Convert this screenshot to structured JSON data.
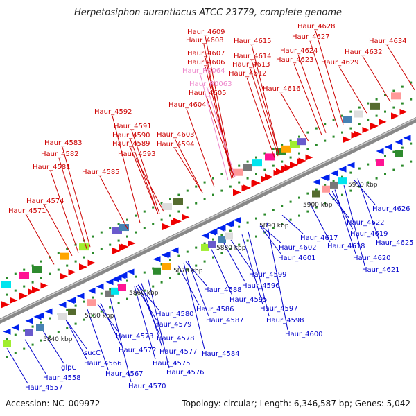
{
  "title": "Herpetosiphon aurantiacus ATCC 23779, complete genome",
  "accession": "Accession: NC_009972",
  "topology": "Topology: circular; Length: 6,346,587 bp; Genes: 5,042",
  "colors": {
    "top_label": "#cc0000",
    "rna_label": "#ee88cc",
    "bottom_label": "#0000cc",
    "forward_arrow": "#ee0000",
    "reverse_arrow": "#0022ee",
    "backbone": "#888888",
    "tick": "#2a8a2a"
  },
  "kbp_ticks": [
    "5840 kbp",
    "5850 kbp",
    "5860 kbp",
    "5870 kbp",
    "5880 kbp",
    "5890 kbp",
    "5900 kbp",
    "5910 kbp"
  ],
  "top_labels": [
    {
      "text": "Haur_4609",
      "type": "gene"
    },
    {
      "text": "Haur_4608",
      "type": "gene"
    },
    {
      "text": "Haur_4607",
      "type": "gene"
    },
    {
      "text": "Haur_4606",
      "type": "gene"
    },
    {
      "text": "Haur_R0064",
      "type": "rna"
    },
    {
      "text": "Haur_R0063",
      "type": "rna"
    },
    {
      "text": "Haur_4605",
      "type": "gene"
    },
    {
      "text": "Haur_4604",
      "type": "gene"
    },
    {
      "text": "Haur_4615",
      "type": "gene"
    },
    {
      "text": "Haur_4614",
      "type": "gene"
    },
    {
      "text": "Haur_4613",
      "type": "gene"
    },
    {
      "text": "Haur_4612",
      "type": "gene"
    },
    {
      "text": "Haur_4616",
      "type": "gene"
    },
    {
      "text": "Haur_4628",
      "type": "gene"
    },
    {
      "text": "Haur_4627",
      "type": "gene"
    },
    {
      "text": "Haur_4624",
      "type": "gene"
    },
    {
      "text": "Haur_4623",
      "type": "gene"
    },
    {
      "text": "Haur_4629",
      "type": "gene"
    },
    {
      "text": "Haur_4632",
      "type": "gene"
    },
    {
      "text": "Haur_4634",
      "type": "gene"
    },
    {
      "text": "Haur_4592",
      "type": "gene"
    },
    {
      "text": "Haur_4591",
      "type": "gene"
    },
    {
      "text": "Haur_4590",
      "type": "gene"
    },
    {
      "text": "Haur_4589",
      "type": "gene"
    },
    {
      "text": "Haur_4594",
      "type": "gene"
    },
    {
      "text": "Haur_4593",
      "type": "gene"
    },
    {
      "text": "Haur_4603",
      "type": "gene"
    },
    {
      "text": "Haur_4583",
      "type": "gene"
    },
    {
      "text": "Haur_4582",
      "type": "gene"
    },
    {
      "text": "Haur_4581",
      "type": "gene"
    },
    {
      "text": "Haur_4585",
      "type": "gene"
    },
    {
      "text": "Haur_4574",
      "type": "gene"
    },
    {
      "text": "Haur_4571",
      "type": "gene"
    }
  ],
  "bottom_labels": [
    {
      "text": "Haur_4626"
    },
    {
      "text": "Haur_4622"
    },
    {
      "text": "Haur_4619"
    },
    {
      "text": "Haur_4625"
    },
    {
      "text": "Haur_4617"
    },
    {
      "text": "Haur_4618"
    },
    {
      "text": "Haur_4620"
    },
    {
      "text": "Haur_4621"
    },
    {
      "text": "Haur_4602"
    },
    {
      "text": "Haur_4601"
    },
    {
      "text": "Haur_4599"
    },
    {
      "text": "Haur_4596"
    },
    {
      "text": "Haur_4588"
    },
    {
      "text": "Haur_4595"
    },
    {
      "text": "Haur_4586"
    },
    {
      "text": "Haur_4597"
    },
    {
      "text": "Haur_4587"
    },
    {
      "text": "Haur_4598"
    },
    {
      "text": "Haur_4600"
    },
    {
      "text": "Haur_4580"
    },
    {
      "text": "Haur_4579"
    },
    {
      "text": "Haur_4578"
    },
    {
      "text": "Haur_4573"
    },
    {
      "text": "Haur_4572"
    },
    {
      "text": "Haur_4577"
    },
    {
      "text": "Haur_4584"
    },
    {
      "text": "Haur_4575"
    },
    {
      "text": "Haur_4576"
    },
    {
      "text": "sucC"
    },
    {
      "text": "Haur_4566"
    },
    {
      "text": "Haur_4567"
    },
    {
      "text": "Haur_4570"
    },
    {
      "text": "glpC"
    },
    {
      "text": "Haur_4558"
    },
    {
      "text": "Haur_4557"
    }
  ]
}
